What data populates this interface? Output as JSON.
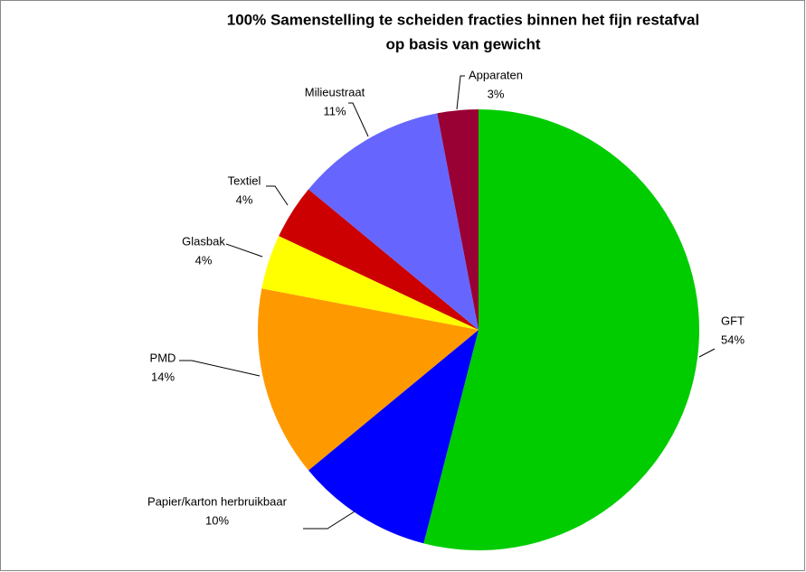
{
  "chart_data": {
    "type": "pie",
    "title": [
      "100% Samenstelling te scheiden fracties binnen het fijn restafval",
      "op basis van  gewicht"
    ],
    "categories": [
      "GFT",
      "Papier/karton herbruikbaar",
      "PMD",
      "Glasbak",
      "Textiel",
      "Milieustraat",
      "Apparaten"
    ],
    "values": [
      54,
      10,
      14,
      4,
      4,
      11,
      3
    ],
    "value_labels": [
      "54%",
      "10%",
      "14%",
      "4%",
      "4%",
      "11%",
      "3%"
    ],
    "colors": [
      "#00cc00",
      "#0000ff",
      "#ff9900",
      "#ffff00",
      "#cc0000",
      "#6666ff",
      "#990033"
    ]
  }
}
